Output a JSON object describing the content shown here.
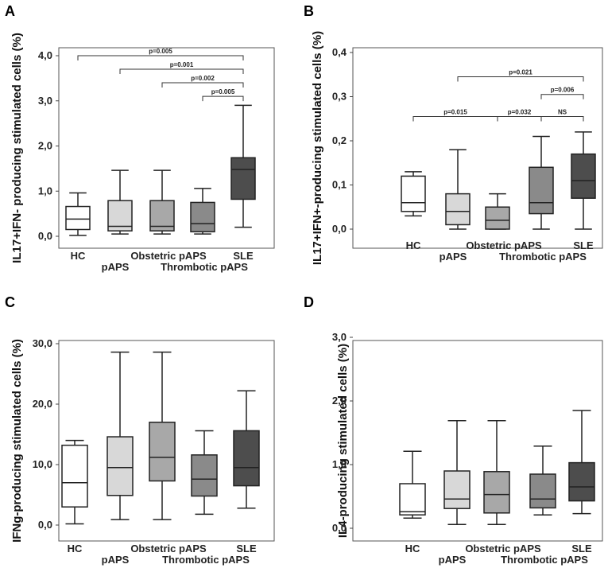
{
  "chart_data": [
    {
      "panel": "A",
      "type": "box",
      "ylabel": "IL17+IFN- producing stimulated cells (%)",
      "yticks": [
        "0,0",
        "1,0",
        "2,0",
        "3,0",
        "4,0"
      ],
      "ylim": [
        0,
        4.0
      ],
      "categories": [
        "HC",
        "pAPS",
        "Obstetric pAPS",
        "Thrombotic pAPS",
        "SLE"
      ],
      "colors": [
        "#ffffff",
        "#d8d8d8",
        "#a8a8a8",
        "#8a8a8a",
        "#4d4d4d"
      ],
      "boxes": [
        {
          "min": 0.02,
          "q1": 0.15,
          "median": 0.38,
          "q3": 0.66,
          "max": 0.96
        },
        {
          "min": 0.05,
          "q1": 0.12,
          "median": 0.22,
          "q3": 0.79,
          "max": 1.46
        },
        {
          "min": 0.05,
          "q1": 0.12,
          "median": 0.22,
          "q3": 0.79,
          "max": 1.46
        },
        {
          "min": 0.05,
          "q1": 0.1,
          "median": 0.28,
          "q3": 0.75,
          "max": 1.06
        },
        {
          "min": 0.2,
          "q1": 0.82,
          "median": 1.48,
          "q3": 1.74,
          "max": 2.9
        }
      ],
      "sig": [
        {
          "from": 0,
          "to": 4,
          "level": 4.0,
          "label": "p=0.005"
        },
        {
          "from": 1,
          "to": 4,
          "level": 3.7,
          "label": "p=0.001"
        },
        {
          "from": 2,
          "to": 4,
          "level": 3.4,
          "label": "p=0.002"
        },
        {
          "from": 3,
          "to": 4,
          "level": 3.1,
          "label": "p=0.005"
        }
      ]
    },
    {
      "panel": "B",
      "type": "box",
      "ylabel": "IL17+IFN+-producing stimulated cells (%)",
      "yticks": [
        "0,0",
        "0,1",
        "0,2",
        "0,3",
        "0,4"
      ],
      "ylim": [
        0,
        0.4
      ],
      "categories": [
        "HC",
        "pAPS",
        "Obstetric pAPS",
        "Thrombotic pAPS",
        "SLE"
      ],
      "colors": [
        "#ffffff",
        "#d8d8d8",
        "#a8a8a8",
        "#8a8a8a",
        "#4d4d4d"
      ],
      "boxes": [
        {
          "min": 0.03,
          "q1": 0.04,
          "median": 0.06,
          "q3": 0.12,
          "max": 0.13
        },
        {
          "min": 0.0,
          "q1": 0.01,
          "median": 0.04,
          "q3": 0.08,
          "max": 0.18
        },
        {
          "min": 0.0,
          "q1": 0.0,
          "median": 0.02,
          "q3": 0.05,
          "max": 0.08
        },
        {
          "min": 0.0,
          "q1": 0.035,
          "median": 0.06,
          "q3": 0.14,
          "max": 0.21
        },
        {
          "min": 0.0,
          "q1": 0.07,
          "median": 0.11,
          "q3": 0.17,
          "max": 0.22
        }
      ],
      "sig": [
        {
          "from": 1,
          "to": 4,
          "level": 0.345,
          "label": "p=0.021"
        },
        {
          "from": 3,
          "to": 4,
          "level": 0.305,
          "label": "p=0.006"
        },
        {
          "from": 0,
          "to": 2,
          "level": 0.255,
          "label": "p=0.015"
        },
        {
          "from": 2,
          "to": 3,
          "level": 0.255,
          "label": "p=0.032"
        },
        {
          "from": 3,
          "to": 4,
          "level": 0.255,
          "label": "NS"
        }
      ]
    },
    {
      "panel": "C",
      "type": "box",
      "ylabel": "IFNg-producing stimulated cells (%)",
      "yticks": [
        "0,0",
        "10,0",
        "20,0",
        "30,0"
      ],
      "ylim": [
        0,
        30
      ],
      "categories": [
        "HC",
        "pAPS",
        "Obstetric pAPS",
        "Thrombotic pAPS",
        "SLE"
      ],
      "colors": [
        "#ffffff",
        "#d8d8d8",
        "#a8a8a8",
        "#8a8a8a",
        "#4d4d4d"
      ],
      "boxes": [
        {
          "min": 0.2,
          "q1": 3.0,
          "median": 7.0,
          "q3": 13.2,
          "max": 14.0
        },
        {
          "min": 0.9,
          "q1": 4.9,
          "median": 9.5,
          "q3": 14.6,
          "max": 28.6
        },
        {
          "min": 0.9,
          "q1": 7.3,
          "median": 11.2,
          "q3": 17.0,
          "max": 28.6
        },
        {
          "min": 1.8,
          "q1": 4.8,
          "median": 7.6,
          "q3": 11.6,
          "max": 15.6
        },
        {
          "min": 2.8,
          "q1": 6.5,
          "median": 9.5,
          "q3": 15.6,
          "max": 22.2
        }
      ],
      "sig": []
    },
    {
      "panel": "D",
      "type": "box",
      "ylabel": "IL4-producing stimulated cells (%)",
      "yticks": [
        "0,0",
        "1,0",
        "2,0",
        "3,0"
      ],
      "ylim": [
        0,
        3.0
      ],
      "categories": [
        "HC",
        "pAPS",
        "Obstetric pAPS",
        "Thrombotic pAPS",
        "SLE"
      ],
      "colors": [
        "#ffffff",
        "#d8d8d8",
        "#a8a8a8",
        "#8a8a8a",
        "#4d4d4d"
      ],
      "boxes": [
        {
          "min": 0.16,
          "q1": 0.21,
          "median": 0.26,
          "q3": 0.7,
          "max": 1.21
        },
        {
          "min": 0.06,
          "q1": 0.31,
          "median": 0.46,
          "q3": 0.9,
          "max": 1.69
        },
        {
          "min": 0.06,
          "q1": 0.24,
          "median": 0.53,
          "q3": 0.89,
          "max": 1.69
        },
        {
          "min": 0.21,
          "q1": 0.32,
          "median": 0.46,
          "q3": 0.85,
          "max": 1.29
        },
        {
          "min": 0.23,
          "q1": 0.43,
          "median": 0.65,
          "q3": 1.03,
          "max": 1.85
        }
      ],
      "sig": []
    }
  ]
}
